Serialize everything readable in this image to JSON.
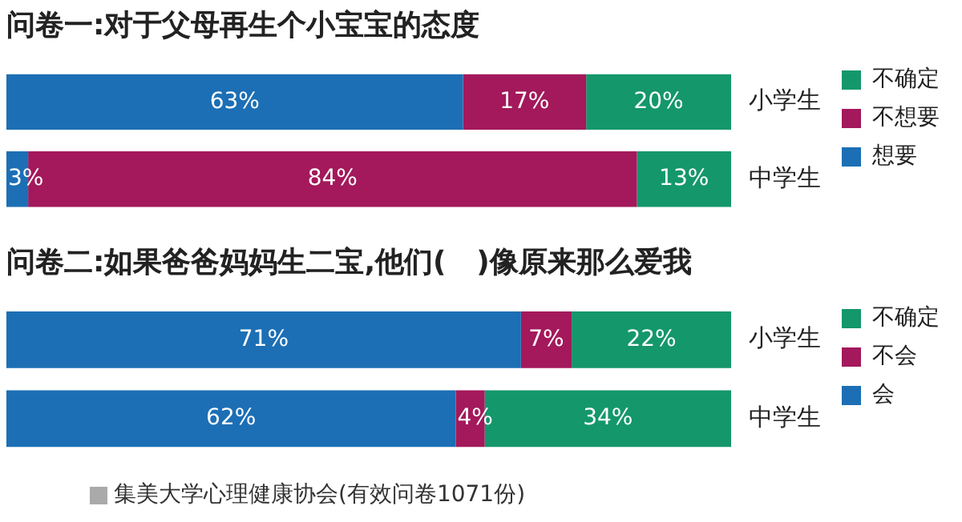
{
  "chart_data": [
    {
      "type": "bar",
      "title": "问卷一:对于父母再生个小宝宝的态度",
      "orientation": "horizontal",
      "stacked": true,
      "categories": [
        "小学生",
        "中学生"
      ],
      "legend": "right",
      "tick_labels": "y",
      "grid": false,
      "series": [
        {
          "name": "想要",
          "color": "#1c6fb5",
          "values": [
            63,
            3
          ],
          "value_labels": [
            "63%",
            "3%"
          ]
        },
        {
          "name": "不想要",
          "color": "#a3195b",
          "values": [
            17,
            84
          ],
          "value_labels": [
            "17%",
            "84%"
          ]
        },
        {
          "name": "不确定",
          "color": "#14976b",
          "values": [
            20,
            13
          ],
          "value_labels": [
            "20%",
            "13%"
          ]
        }
      ]
    },
    {
      "type": "bar",
      "title": "问卷二:如果爸爸妈妈生二宝,他们(   )像原来那么爱我",
      "orientation": "horizontal",
      "stacked": true,
      "categories": [
        "小学生",
        "中学生"
      ],
      "legend": "right",
      "tick_labels": "y",
      "grid": false,
      "series": [
        {
          "name": "会",
          "color": "#1c6fb5",
          "values": [
            71,
            62
          ],
          "value_labels": [
            "71%",
            "62%"
          ]
        },
        {
          "name": "不会",
          "color": "#a3195b",
          "values": [
            7,
            4
          ],
          "value_labels": [
            "7%",
            "4%"
          ]
        },
        {
          "name": "不确定",
          "color": "#14976b",
          "values": [
            22,
            34
          ],
          "value_labels": [
            "22%",
            "34%"
          ]
        }
      ],
      "annotations": [
        "集美大学心理健康协会(有效问卷1071份)"
      ]
    }
  ]
}
